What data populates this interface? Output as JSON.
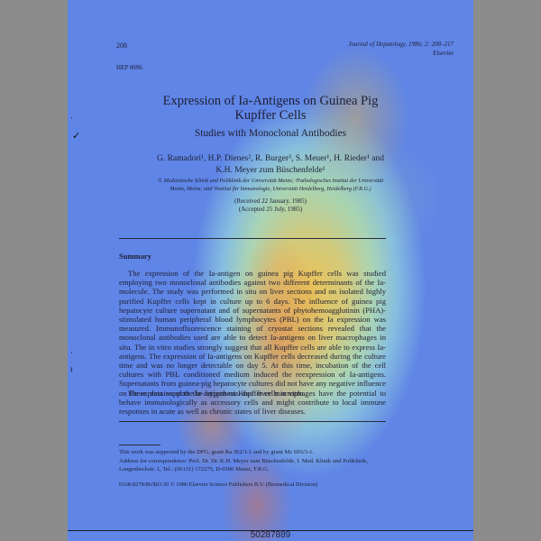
{
  "header": {
    "page_number": "208",
    "journal_line1": "Journal of Hepatology, 1986; 2: 208–217",
    "journal_line2": "Elsevier",
    "hep_code": "HEP 0096"
  },
  "title": {
    "line1": "Expression of Ia-Antigens on Guinea Pig",
    "line2": "Kupffer Cells",
    "subtitle": "Studies with Monoclonal Antibodies"
  },
  "authors": {
    "line1": "G. Ramadori¹, H.P. Dienes², R. Burger³, S. Meuer¹, H. Rieder¹ and",
    "line2": "K.H. Meyer zum Büschenfelde¹"
  },
  "affiliations": {
    "line1": "¹I. Medizinische Klinik und Poliklinik der Universität Mainz;  ²Pathologisches Institut der Universität",
    "line2": "Mainz, Mainz; and  ³Institut für Immunologie, Universität Heidelberg, Heidelberg (F.R.G.)"
  },
  "dates": {
    "received": "(Received 22 January, 1985)",
    "accepted": "(Accepted 25 July, 1985)"
  },
  "summary": {
    "heading": "Summary",
    "paragraph1": "The expression of the Ia-antigen on guinea pig Kupffer cells was studied employing two monoclonal antibodies against two different determinants of the Ia-molecule. The study was performed in situ on liver sections and on isolated highly purified Kupffer cells kept in culture up to 6 days. The influence of guinea pig hepatocyte culture supernatant and of supernatants of phytohemoagglutinin (PHA)-stimulated human peripheral blood lymphocytes (PBL) on the Ia expression was measured. Immunofluorescence staining of cryostat sections revealed that the monoclonal antibodies used are able to detect Ia-antigens on liver macrophages in situ. The in vitro studies strongly suggest that all Kupffer cells are able to express Ia-antigens. The expression of Ia-antigens on Kupffer cells decreased during the culture time and was no longer detectable on day 5. At this time, incubation of the cell cultures with PBL conditioned medium induced the reexpression of Ia-antigens. Supernatants from guinea-pig hepatocyte cultures did not have any negative influence on the expression of the Ia-antigen on Kupffer cells in vitro.",
    "paragraph2": "These data support the hypothesis that liver macrophages have the potential to behave immunologically as accessory cells and might contribute to local immune responses in acute as well as chronic states of liver diseases."
  },
  "footnotes": {
    "support": "This work was supported by the DFG, grant Ra 362/1-1 and by grant Mc 693/3-1.",
    "correspondence_line1": "Address for correspondence: Prof. Dr. Dr. K.H. Meyer zum Büschenfelde, I. Med. Klinik und Poliklinik, Langenbeckstr. 1, Tel.: (06131) 172275, D-6500 Mainz, F.R.G."
  },
  "copyright": "0168-8278/86/$03.50 © 1986 Elsevier Science Publishers B.V. (Biomedical Division)",
  "doc_id": "50287889"
}
